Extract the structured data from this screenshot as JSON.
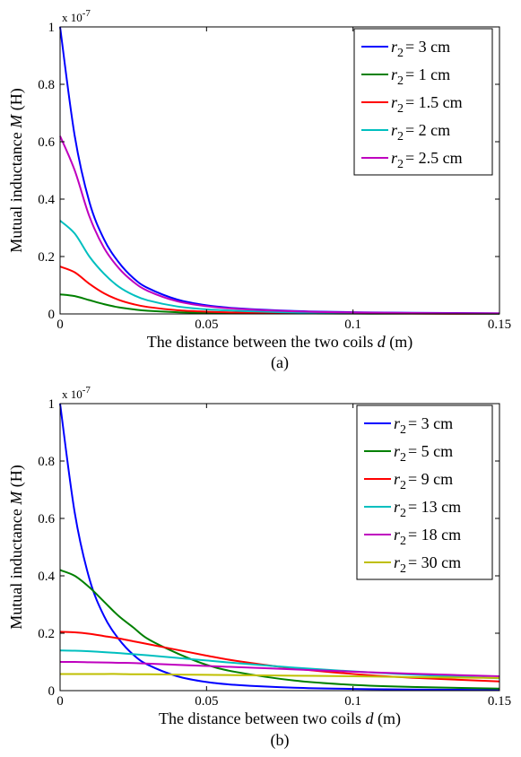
{
  "chart_data": [
    {
      "type": "line",
      "caption": "(a)",
      "xlabel_prefix": "The distance between the two coils ",
      "xlabel_var": "d",
      "xlabel_unit": " (m)",
      "ylabel_prefix": "Mutual inductance ",
      "ylabel_var": "M",
      "ylabel_unit": " (H)",
      "exponent_base": "x 10",
      "exponent_power": "-7",
      "xlim": [
        0,
        0.15
      ],
      "ylim": [
        0,
        1
      ],
      "x_ticks": [
        0,
        0.05,
        0.1,
        0.15
      ],
      "x_tick_labels": [
        "0",
        "0.05",
        "0.1",
        "0.15"
      ],
      "y_ticks": [
        0,
        0.2,
        0.4,
        0.6,
        0.8,
        1
      ],
      "y_tick_labels": [
        "0",
        "0.2",
        "0.4",
        "0.6",
        "0.8",
        "1"
      ],
      "grid": false,
      "legend_position": "top-right",
      "legend_var": "r",
      "legend_sub": "2",
      "x": [
        0,
        0.005,
        0.01,
        0.015,
        0.02,
        0.025,
        0.03,
        0.04,
        0.05,
        0.06,
        0.08,
        0.1,
        0.12,
        0.15
      ],
      "series": [
        {
          "name": "= 3 cm",
          "color": "#0000ff",
          "values": [
            1.0,
            0.62,
            0.39,
            0.26,
            0.18,
            0.125,
            0.09,
            0.05,
            0.03,
            0.02,
            0.01,
            0.006,
            0.004,
            0.002
          ]
        },
        {
          "name": "= 1 cm",
          "color": "#008000",
          "values": [
            0.068,
            0.062,
            0.048,
            0.034,
            0.023,
            0.016,
            0.011,
            0.006,
            0.004,
            0.003,
            0.002,
            0.001,
            0.001,
            0.0005
          ]
        },
        {
          "name": "= 1.5 cm",
          "color": "#ff0000",
          "values": [
            0.165,
            0.145,
            0.105,
            0.072,
            0.049,
            0.034,
            0.024,
            0.013,
            0.008,
            0.005,
            0.003,
            0.002,
            0.001,
            0.001
          ]
        },
        {
          "name": "= 2 cm",
          "color": "#00bfbf",
          "values": [
            0.325,
            0.28,
            0.2,
            0.14,
            0.095,
            0.066,
            0.047,
            0.026,
            0.016,
            0.011,
            0.005,
            0.003,
            0.002,
            0.001
          ]
        },
        {
          "name": "= 2.5 cm",
          "color": "#bf00bf",
          "values": [
            0.62,
            0.5,
            0.34,
            0.23,
            0.16,
            0.112,
            0.08,
            0.044,
            0.027,
            0.018,
            0.009,
            0.005,
            0.003,
            0.002
          ]
        }
      ]
    },
    {
      "type": "line",
      "caption": "(b)",
      "xlabel_prefix": "The distance between two coils ",
      "xlabel_var": "d",
      "xlabel_unit": " (m)",
      "ylabel_prefix": "Mutual inductance ",
      "ylabel_var": "M",
      "ylabel_unit": " (H)",
      "exponent_base": "x 10",
      "exponent_power": "-7",
      "xlim": [
        0,
        0.15
      ],
      "ylim": [
        0,
        1
      ],
      "x_ticks": [
        0,
        0.05,
        0.1,
        0.15
      ],
      "x_tick_labels": [
        "0",
        "0.05",
        "0.1",
        "0.15"
      ],
      "y_ticks": [
        0,
        0.2,
        0.4,
        0.6,
        0.8,
        1
      ],
      "y_tick_labels": [
        "0",
        "0.2",
        "0.4",
        "0.6",
        "0.8",
        "1"
      ],
      "grid": false,
      "legend_position": "top-right",
      "legend_var": "r",
      "legend_sub": "2",
      "x": [
        0,
        0.005,
        0.01,
        0.015,
        0.02,
        0.025,
        0.03,
        0.04,
        0.05,
        0.06,
        0.08,
        0.1,
        0.12,
        0.15
      ],
      "series": [
        {
          "name": "= 3 cm",
          "color": "#0000ff",
          "values": [
            1.0,
            0.62,
            0.39,
            0.26,
            0.18,
            0.125,
            0.09,
            0.05,
            0.03,
            0.02,
            0.01,
            0.006,
            0.004,
            0.002
          ]
        },
        {
          "name": "= 5 cm",
          "color": "#008000",
          "values": [
            0.42,
            0.4,
            0.36,
            0.31,
            0.26,
            0.22,
            0.18,
            0.13,
            0.09,
            0.065,
            0.035,
            0.02,
            0.013,
            0.007
          ]
        },
        {
          "name": "= 9 cm",
          "color": "#ff0000",
          "values": [
            0.205,
            0.203,
            0.198,
            0.19,
            0.182,
            0.172,
            0.162,
            0.142,
            0.122,
            0.104,
            0.077,
            0.058,
            0.045,
            0.032
          ]
        },
        {
          "name": "= 13 cm",
          "color": "#00bfbf",
          "values": [
            0.14,
            0.139,
            0.137,
            0.134,
            0.131,
            0.127,
            0.123,
            0.114,
            0.105,
            0.096,
            0.08,
            0.067,
            0.056,
            0.043
          ]
        },
        {
          "name": "= 18 cm",
          "color": "#bf00bf",
          "values": [
            0.1,
            0.1,
            0.099,
            0.098,
            0.097,
            0.096,
            0.094,
            0.09,
            0.086,
            0.082,
            0.074,
            0.066,
            0.059,
            0.05
          ]
        },
        {
          "name": "= 30 cm",
          "color": "#bfbf00",
          "values": [
            0.058,
            0.058,
            0.058,
            0.058,
            0.058,
            0.057,
            0.057,
            0.056,
            0.055,
            0.054,
            0.052,
            0.05,
            0.047,
            0.044
          ]
        }
      ]
    }
  ]
}
